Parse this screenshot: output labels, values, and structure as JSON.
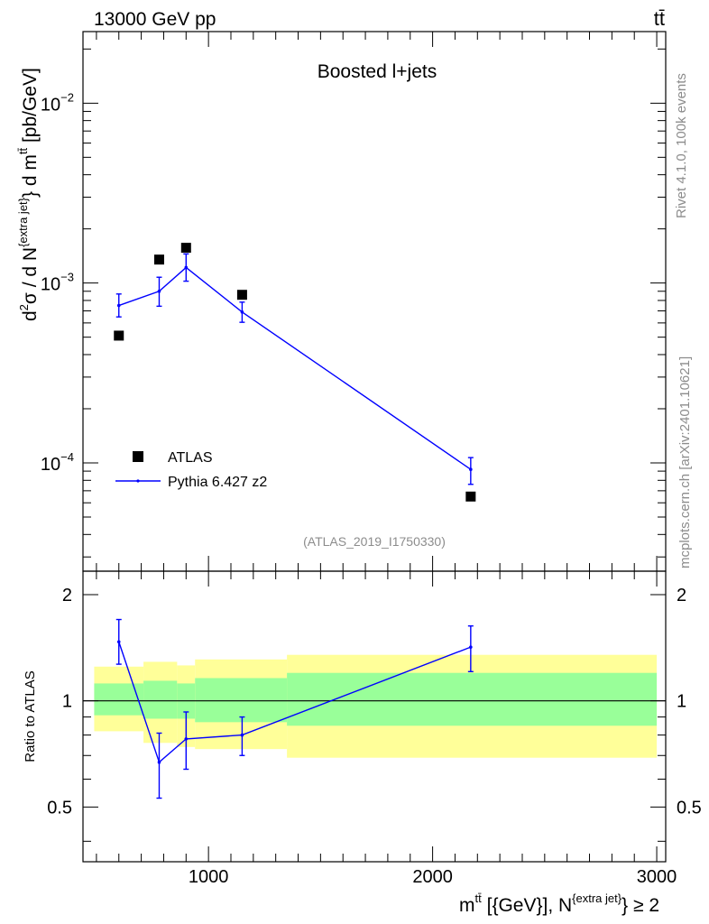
{
  "header": {
    "energy_label": "13000 GeV pp",
    "process_label": "tt̄"
  },
  "side_labels": {
    "rivet": "Rivet 4.1.0,  100k events",
    "mcplots": "mcplots.cern.ch [arXiv:2401.10621]"
  },
  "chart_data": [
    {
      "type": "scatter",
      "panel": "main",
      "title": "Boosted l+jets",
      "analysis_label": "(ATLAS_2019_I1750330)",
      "ylabel": "d²σ / d N^{extra jet} d m^{tt̄} [pb/GeV]",
      "yscale": "log",
      "ylim": [
        2.5e-05,
        0.025
      ],
      "xlim": [
        440,
        3040
      ],
      "yticks": [
        {
          "value": 0.01,
          "base": "10",
          "exp": "−2"
        },
        {
          "value": 0.001,
          "base": "10",
          "exp": "−3"
        },
        {
          "value": 0.0001,
          "base": "10",
          "exp": "−4"
        }
      ],
      "legend_position": "bottom-left",
      "series": [
        {
          "name": "ATLAS",
          "style": "markers",
          "color": "#000000",
          "x": [
            600,
            780,
            900,
            1150,
            2170
          ],
          "y": [
            0.00051,
            0.00135,
            0.00157,
            0.00086,
            6.5e-05
          ]
        },
        {
          "name": "Pythia 6.427 z2",
          "style": "line",
          "color": "#0000ff",
          "x": [
            600,
            780,
            900,
            1150,
            2170
          ],
          "y": [
            0.00075,
            0.0009,
            0.00122,
            0.00069,
            9.2e-05
          ],
          "yerr_low": [
            0.000102,
            0.000157,
            0.000196,
            8.5e-05,
            1.6e-05
          ],
          "yerr_high": [
            0.000119,
            0.000177,
            0.000231,
            9.3e-05,
            1.5e-05
          ]
        }
      ]
    },
    {
      "type": "line",
      "panel": "ratio",
      "ylabel": "Ratio to ATLAS",
      "xlabel": "m^{tt̄} [{GeV}], N^{extra jet} ≥ 2",
      "xlim": [
        440,
        3040
      ],
      "ylim": [
        0.35,
        2.33
      ],
      "xticks": [
        1000,
        2000,
        3000
      ],
      "xtick_labels": [
        "1000",
        "2000",
        "3000"
      ],
      "yticks": [
        2,
        1,
        0.5
      ],
      "ytick_labels": [
        "2",
        "1",
        "0.5"
      ],
      "reference_line": 1,
      "bands": {
        "edges": [
          490,
          710,
          860,
          940,
          1350,
          3000
        ],
        "outer_low": [
          0.82,
          0.76,
          0.74,
          0.73,
          0.69
        ],
        "outer_high": [
          1.25,
          1.29,
          1.26,
          1.31,
          1.35
        ],
        "inner_low": [
          0.91,
          0.89,
          0.89,
          0.87,
          0.85
        ],
        "inner_high": [
          1.12,
          1.14,
          1.12,
          1.16,
          1.2
        ],
        "outer_color": "#ffff99",
        "inner_color": "#99ff99"
      },
      "series": [
        {
          "name": "Pythia 6.427 z2",
          "color": "#0000ff",
          "x": [
            600,
            780,
            900,
            1150,
            2170
          ],
          "y": [
            1.47,
            0.67,
            0.78,
            0.8,
            1.42
          ],
          "yerr_low": [
            0.2,
            0.14,
            0.14,
            0.1,
            0.21
          ],
          "yerr_high": [
            0.23,
            0.14,
            0.15,
            0.1,
            0.21
          ]
        }
      ]
    }
  ]
}
